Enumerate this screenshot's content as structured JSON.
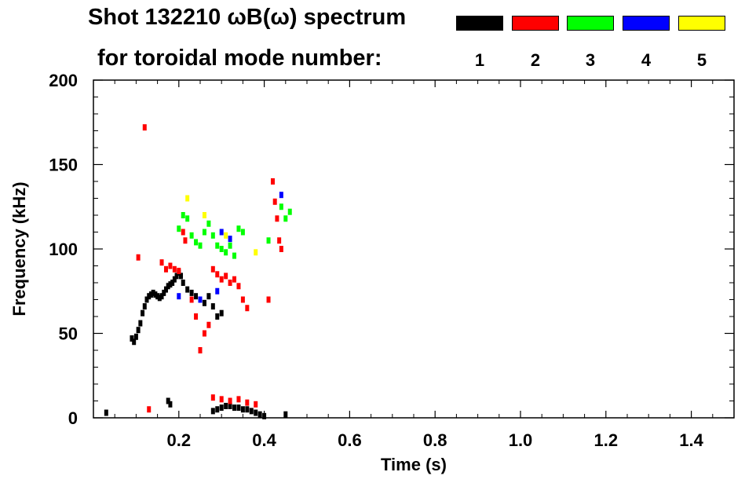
{
  "header": {
    "title": "Shot 132210 ωB(ω) spectrum",
    "subtitle": "for toroidal mode number:"
  },
  "legend": [
    {
      "label": "1",
      "color": "#000000"
    },
    {
      "label": "2",
      "color": "#ff0000"
    },
    {
      "label": "3",
      "color": "#00ff00"
    },
    {
      "label": "4",
      "color": "#0000ff"
    },
    {
      "label": "5",
      "color": "#ffff00"
    }
  ],
  "chart_data": {
    "type": "scatter",
    "title": "Shot 132210 ωB(ω) spectrum",
    "subtitle": "for toroidal mode number:",
    "xlabel": "Time (s)",
    "ylabel": "Frequency (kHz)",
    "xlim": [
      0.0,
      1.5
    ],
    "ylim": [
      0,
      200
    ],
    "x_ticks": [
      0.2,
      0.4,
      0.6,
      0.8,
      1.0,
      1.2,
      1.4
    ],
    "x_tick_labels": [
      "0.2",
      "0.4",
      "0.6",
      "0.8",
      "1.0",
      "1.2",
      "1.4"
    ],
    "y_ticks": [
      0,
      50,
      100,
      150,
      200
    ],
    "y_tick_labels": [
      "0",
      "50",
      "100",
      "150",
      "200"
    ],
    "series": [
      {
        "name": "1",
        "color": "#000000",
        "points": [
          [
            0.09,
            47
          ],
          [
            0.095,
            45
          ],
          [
            0.1,
            48
          ],
          [
            0.105,
            52
          ],
          [
            0.11,
            56
          ],
          [
            0.115,
            62
          ],
          [
            0.12,
            66
          ],
          [
            0.125,
            70
          ],
          [
            0.13,
            72
          ],
          [
            0.135,
            73
          ],
          [
            0.14,
            74
          ],
          [
            0.145,
            73
          ],
          [
            0.15,
            72
          ],
          [
            0.155,
            71
          ],
          [
            0.16,
            72
          ],
          [
            0.165,
            74
          ],
          [
            0.17,
            76
          ],
          [
            0.175,
            78
          ],
          [
            0.18,
            79
          ],
          [
            0.185,
            80
          ],
          [
            0.19,
            82
          ],
          [
            0.195,
            84
          ],
          [
            0.2,
            86
          ],
          [
            0.205,
            84
          ],
          [
            0.21,
            80
          ],
          [
            0.22,
            76
          ],
          [
            0.23,
            74
          ],
          [
            0.24,
            72
          ],
          [
            0.25,
            70
          ],
          [
            0.26,
            68
          ],
          [
            0.27,
            72
          ],
          [
            0.28,
            66
          ],
          [
            0.29,
            60
          ],
          [
            0.3,
            62
          ],
          [
            0.175,
            10
          ],
          [
            0.18,
            8
          ],
          [
            0.28,
            4
          ],
          [
            0.29,
            5
          ],
          [
            0.3,
            6
          ],
          [
            0.31,
            7
          ],
          [
            0.32,
            7
          ],
          [
            0.33,
            6
          ],
          [
            0.34,
            6
          ],
          [
            0.35,
            5
          ],
          [
            0.36,
            5
          ],
          [
            0.37,
            4
          ],
          [
            0.38,
            3
          ],
          [
            0.39,
            2
          ],
          [
            0.4,
            1
          ],
          [
            0.03,
            3
          ],
          [
            0.45,
            2
          ]
        ]
      },
      {
        "name": "2",
        "color": "#ff0000",
        "points": [
          [
            0.12,
            172
          ],
          [
            0.105,
            95
          ],
          [
            0.16,
            92
          ],
          [
            0.17,
            88
          ],
          [
            0.18,
            90
          ],
          [
            0.19,
            88
          ],
          [
            0.2,
            87
          ],
          [
            0.21,
            110
          ],
          [
            0.215,
            105
          ],
          [
            0.23,
            70
          ],
          [
            0.24,
            60
          ],
          [
            0.25,
            40
          ],
          [
            0.26,
            50
          ],
          [
            0.27,
            55
          ],
          [
            0.28,
            88
          ],
          [
            0.29,
            85
          ],
          [
            0.3,
            82
          ],
          [
            0.31,
            84
          ],
          [
            0.32,
            80
          ],
          [
            0.33,
            82
          ],
          [
            0.34,
            78
          ],
          [
            0.35,
            70
          ],
          [
            0.36,
            65
          ],
          [
            0.41,
            70
          ],
          [
            0.42,
            140
          ],
          [
            0.425,
            128
          ],
          [
            0.43,
            118
          ],
          [
            0.435,
            105
          ],
          [
            0.44,
            100
          ],
          [
            0.28,
            12
          ],
          [
            0.3,
            11
          ],
          [
            0.32,
            10
          ],
          [
            0.34,
            11
          ],
          [
            0.36,
            9
          ],
          [
            0.38,
            8
          ],
          [
            0.13,
            5
          ]
        ]
      },
      {
        "name": "3",
        "color": "#00ff00",
        "points": [
          [
            0.2,
            112
          ],
          [
            0.21,
            120
          ],
          [
            0.22,
            118
          ],
          [
            0.23,
            108
          ],
          [
            0.24,
            104
          ],
          [
            0.25,
            102
          ],
          [
            0.26,
            110
          ],
          [
            0.27,
            115
          ],
          [
            0.28,
            108
          ],
          [
            0.29,
            102
          ],
          [
            0.3,
            100
          ],
          [
            0.31,
            98
          ],
          [
            0.32,
            102
          ],
          [
            0.33,
            96
          ],
          [
            0.34,
            112
          ],
          [
            0.35,
            110
          ],
          [
            0.44,
            125
          ],
          [
            0.45,
            118
          ],
          [
            0.46,
            122
          ],
          [
            0.41,
            105
          ]
        ]
      },
      {
        "name": "4",
        "color": "#0000ff",
        "points": [
          [
            0.3,
            110
          ],
          [
            0.32,
            106
          ],
          [
            0.25,
            70
          ],
          [
            0.44,
            132
          ],
          [
            0.2,
            72
          ],
          [
            0.29,
            75
          ]
        ]
      },
      {
        "name": "5",
        "color": "#ffff00",
        "points": [
          [
            0.22,
            130
          ],
          [
            0.26,
            120
          ],
          [
            0.31,
            108
          ],
          [
            0.38,
            98
          ]
        ]
      }
    ]
  }
}
